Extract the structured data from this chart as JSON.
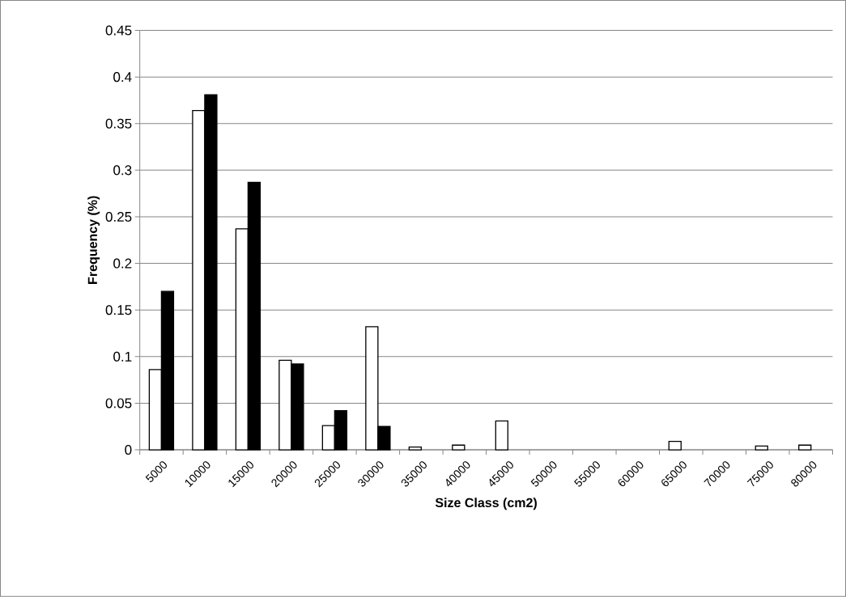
{
  "chart_data": {
    "type": "bar",
    "xlabel": "Size Class (cm2)",
    "ylabel": "Frequency (%)",
    "categories": [
      "5000",
      "10000",
      "15000",
      "20000",
      "25000",
      "30000",
      "35000",
      "40000",
      "45000",
      "50000",
      "55000",
      "60000",
      "65000",
      "70000",
      "75000",
      "80000"
    ],
    "series": [
      {
        "color": "#ffffff",
        "values": [
          0.086,
          0.364,
          0.237,
          0.096,
          0.026,
          0.132,
          0.003,
          0.005,
          0.031,
          null,
          null,
          null,
          0.009,
          null,
          0.004,
          0.005
        ]
      },
      {
        "color": "#000000",
        "values": [
          0.17,
          0.381,
          0.287,
          0.092,
          0.042,
          0.025,
          null,
          null,
          null,
          null,
          null,
          null,
          null,
          null,
          null,
          null
        ]
      }
    ],
    "ylim": [
      0,
      0.45
    ],
    "yticks": [
      0,
      0.05,
      0.1,
      0.15,
      0.2,
      0.25,
      0.3,
      0.35,
      0.4,
      0.45
    ],
    "grid": "y"
  }
}
